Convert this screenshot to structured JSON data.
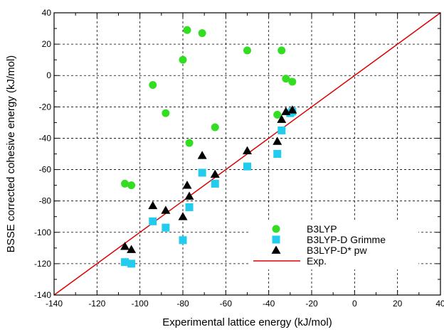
{
  "chart_data": {
    "type": "scatter",
    "xlabel": "Experimental lattice energy (kJ/mol)",
    "ylabel": "BSSE corrected cohesive energy (kJ/mol)",
    "xlim": [
      -140,
      40
    ],
    "ylim": [
      -140,
      40
    ],
    "xticks": [
      -140,
      -120,
      -100,
      -80,
      -60,
      -40,
      -20,
      0,
      20,
      40
    ],
    "yticks": [
      -140,
      -120,
      -100,
      -80,
      -60,
      -40,
      -20,
      0,
      20,
      40
    ],
    "xtick_labels": [
      "-140",
      "-120",
      "-100",
      "-80",
      "-60",
      "-40",
      "-20",
      "0",
      "20",
      "40"
    ],
    "ytick_labels": [
      "-140",
      "-120",
      "-100",
      "-80",
      "-60",
      "-40",
      "-20",
      "0",
      "20",
      "40"
    ],
    "grid": true,
    "legend_position": "bottom-right",
    "series": [
      {
        "name": "B3LYP",
        "marker": "circle",
        "color": "#33dd22",
        "points": [
          [
            -107,
            -69
          ],
          [
            -104,
            -70
          ],
          [
            -94,
            -6
          ],
          [
            -88,
            -24
          ],
          [
            -80,
            10
          ],
          [
            -78,
            29
          ],
          [
            -77,
            -43
          ],
          [
            -71,
            27
          ],
          [
            -65,
            -33
          ],
          [
            -50,
            16
          ],
          [
            -36,
            -25
          ],
          [
            -34,
            16
          ],
          [
            -32,
            -2
          ],
          [
            -29,
            -4
          ]
        ]
      },
      {
        "name": "B3LYP-D Grimme",
        "marker": "square",
        "color": "#22ccee",
        "points": [
          [
            -107,
            -119
          ],
          [
            -104,
            -120
          ],
          [
            -94,
            -93
          ],
          [
            -88,
            -97
          ],
          [
            -80,
            -105
          ],
          [
            -77,
            -84
          ],
          [
            -71,
            -62
          ],
          [
            -65,
            -69
          ],
          [
            -50,
            -58
          ],
          [
            -36,
            -50
          ],
          [
            -34,
            -35
          ],
          [
            -30,
            -24
          ],
          [
            -29,
            -23
          ]
        ]
      },
      {
        "name": "B3LYP-D* pw",
        "marker": "triangle",
        "color": "#000000",
        "points": [
          [
            -107,
            -109
          ],
          [
            -104,
            -111
          ],
          [
            -94,
            -83
          ],
          [
            -88,
            -86
          ],
          [
            -80,
            -90
          ],
          [
            -78,
            -70
          ],
          [
            -77,
            -77
          ],
          [
            -71,
            -51
          ],
          [
            -65,
            -63
          ],
          [
            -50,
            -48
          ],
          [
            -36,
            -42
          ],
          [
            -34,
            -28
          ],
          [
            -32,
            -23
          ],
          [
            -29,
            -22
          ]
        ]
      },
      {
        "name": "Exp.",
        "type": "line",
        "color": "#dd0000",
        "points": [
          [
            -140,
            -140
          ],
          [
            40,
            40
          ]
        ]
      }
    ]
  }
}
